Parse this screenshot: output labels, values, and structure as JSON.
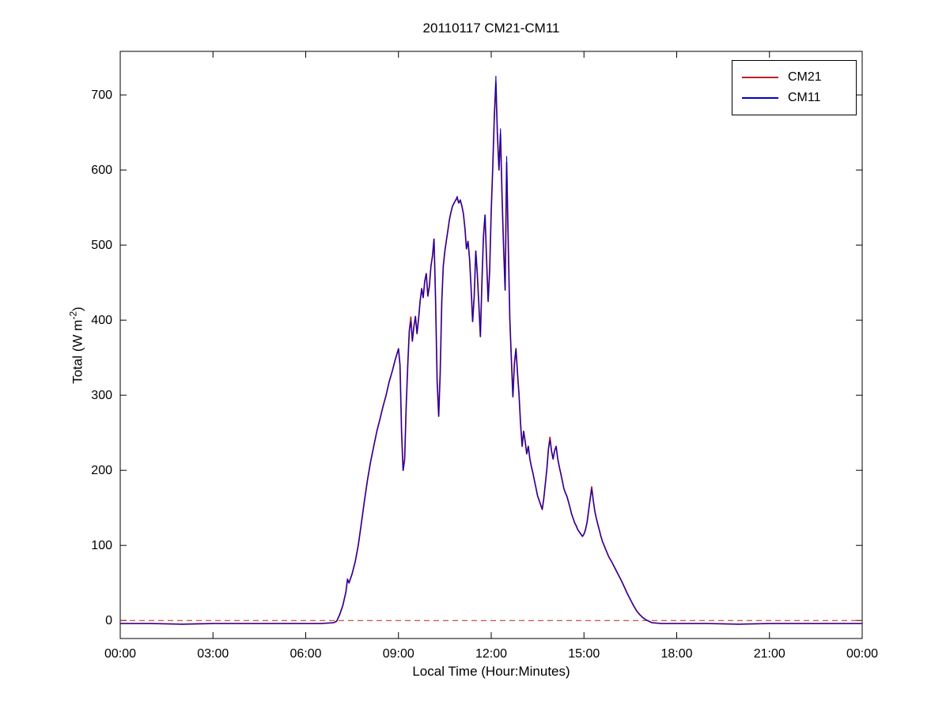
{
  "chart_data": {
    "type": "line",
    "title": "20110117 CM21-CM11",
    "xlabel": "Local Time (Hour:Minutes)",
    "ylabel": "Total (W m-2)",
    "ylabel_parts": {
      "pre": "Total (W m",
      "sup": "-2",
      "post": ")"
    },
    "x_unit": "hours",
    "xlim": [
      0,
      24
    ],
    "ylim": [
      -24,
      758
    ],
    "grid": false,
    "x_ticks": [
      0,
      3,
      6,
      9,
      12,
      15,
      18,
      21,
      24
    ],
    "x_tick_labels": [
      "00:00",
      "03:00",
      "06:00",
      "09:00",
      "12:00",
      "15:00",
      "18:00",
      "21:00",
      "00:00"
    ],
    "y_ticks": [
      0,
      100,
      200,
      300,
      400,
      500,
      600,
      700
    ],
    "y_tick_labels": [
      "0",
      "100",
      "200",
      "300",
      "400",
      "500",
      "600",
      "700"
    ],
    "zero_line": {
      "value": 0,
      "color": "#BB2222",
      "style": "dashed"
    },
    "legend": {
      "position": "top-right",
      "entries": [
        {
          "label": "CM21",
          "color": "#BB2222"
        },
        {
          "label": "CM11",
          "color": "#0000CC"
        }
      ]
    },
    "x": [
      0,
      1,
      2,
      3,
      4,
      5,
      6,
      6.5,
      6.9,
      7.0,
      7.1,
      7.2,
      7.3,
      7.35,
      7.4,
      7.5,
      7.6,
      7.7,
      7.8,
      7.9,
      8.0,
      8.1,
      8.2,
      8.3,
      8.4,
      8.5,
      8.6,
      8.7,
      8.8,
      8.9,
      9.0,
      9.05,
      9.1,
      9.15,
      9.2,
      9.25,
      9.3,
      9.35,
      9.4,
      9.45,
      9.5,
      9.55,
      9.6,
      9.65,
      9.7,
      9.75,
      9.8,
      9.85,
      9.9,
      9.95,
      10.0,
      10.05,
      10.1,
      10.15,
      10.2,
      10.25,
      10.3,
      10.35,
      10.4,
      10.45,
      10.5,
      10.55,
      10.6,
      10.65,
      10.7,
      10.75,
      10.8,
      10.85,
      10.9,
      10.95,
      11.0,
      11.05,
      11.1,
      11.15,
      11.2,
      11.25,
      11.3,
      11.35,
      11.4,
      11.45,
      11.5,
      11.55,
      11.6,
      11.65,
      11.7,
      11.75,
      11.8,
      11.85,
      11.9,
      11.95,
      12.0,
      12.05,
      12.1,
      12.15,
      12.2,
      12.25,
      12.3,
      12.35,
      12.4,
      12.45,
      12.5,
      12.55,
      12.6,
      12.65,
      12.7,
      12.75,
      12.8,
      12.85,
      12.9,
      12.95,
      13.0,
      13.05,
      13.1,
      13.15,
      13.2,
      13.25,
      13.3,
      13.35,
      13.4,
      13.45,
      13.5,
      13.55,
      13.6,
      13.65,
      13.7,
      13.75,
      13.8,
      13.85,
      13.9,
      13.95,
      14.0,
      14.05,
      14.1,
      14.15,
      14.2,
      14.25,
      14.3,
      14.35,
      14.4,
      14.45,
      14.5,
      14.55,
      14.6,
      14.65,
      14.7,
      14.75,
      14.8,
      14.85,
      14.9,
      14.95,
      15.0,
      15.05,
      15.1,
      15.15,
      15.2,
      15.25,
      15.3,
      15.35,
      15.4,
      15.45,
      15.5,
      15.55,
      15.6,
      15.65,
      15.7,
      15.75,
      15.8,
      15.9,
      16.0,
      16.1,
      16.2,
      16.3,
      16.4,
      16.5,
      16.6,
      16.7,
      16.8,
      16.9,
      17.0,
      17.1,
      17.2,
      17.5,
      18,
      19,
      20,
      21,
      22,
      23,
      24
    ],
    "series": [
      {
        "name": "CM21",
        "color": "#BB2222",
        "values": [
          -4,
          -4,
          -5,
          -4,
          -4,
          -4,
          -4,
          -4,
          -3,
          -1,
          8,
          20,
          38,
          55,
          50,
          62,
          78,
          100,
          130,
          160,
          188,
          212,
          232,
          252,
          268,
          285,
          300,
          318,
          332,
          348,
          362,
          340,
          250,
          200,
          215,
          285,
          340,
          385,
          404,
          372,
          392,
          405,
          382,
          402,
          425,
          442,
          430,
          452,
          462,
          432,
          445,
          472,
          485,
          508,
          430,
          320,
          272,
          330,
          425,
          472,
          492,
          506,
          520,
          534,
          544,
          552,
          556,
          560,
          562,
          556,
          560,
          552,
          542,
          522,
          495,
          505,
          482,
          442,
          398,
          432,
          492,
          462,
          420,
          378,
          452,
          512,
          540,
          482,
          425,
          465,
          545,
          605,
          672,
          716,
          648,
          600,
          648,
          565,
          498,
          440,
          610,
          505,
          402,
          350,
          298,
          342,
          362,
          330,
          300,
          262,
          232,
          252,
          238,
          222,
          232,
          215,
          205,
          196,
          186,
          176,
          166,
          160,
          154,
          148,
          162,
          182,
          202,
          228,
          244,
          226,
          215,
          226,
          232,
          216,
          205,
          196,
          186,
          176,
          170,
          165,
          158,
          150,
          142,
          136,
          130,
          126,
          121,
          118,
          115,
          112,
          115,
          121,
          131,
          146,
          162,
          178,
          160,
          146,
          136,
          128,
          120,
          112,
          105,
          100,
          95,
          90,
          85,
          78,
          70,
          62,
          54,
          45,
          36,
          28,
          20,
          13,
          8,
          4,
          1,
          -1,
          -3,
          -4,
          -4,
          -4,
          -5,
          -4,
          -4,
          -4,
          -4
        ]
      },
      {
        "name": "CM11",
        "color": "#0000CC",
        "values": [
          -4,
          -4,
          -5,
          -4,
          -4,
          -4,
          -4,
          -4,
          -3,
          -1,
          8,
          20,
          38,
          55,
          50,
          62,
          78,
          100,
          130,
          160,
          188,
          212,
          232,
          252,
          268,
          285,
          300,
          318,
          332,
          348,
          362,
          340,
          250,
          200,
          215,
          285,
          340,
          385,
          398,
          372,
          392,
          405,
          382,
          402,
          425,
          442,
          430,
          452,
          462,
          432,
          445,
          472,
          485,
          508,
          430,
          320,
          272,
          330,
          425,
          472,
          492,
          506,
          520,
          534,
          544,
          552,
          556,
          560,
          565,
          556,
          560,
          552,
          542,
          522,
          495,
          505,
          482,
          442,
          398,
          432,
          492,
          462,
          420,
          378,
          452,
          512,
          540,
          482,
          425,
          465,
          545,
          605,
          665,
          725,
          648,
          600,
          655,
          565,
          498,
          440,
          618,
          505,
          402,
          350,
          298,
          342,
          362,
          330,
          300,
          262,
          232,
          252,
          238,
          222,
          232,
          215,
          205,
          196,
          186,
          176,
          166,
          160,
          154,
          148,
          162,
          182,
          202,
          228,
          240,
          226,
          215,
          226,
          232,
          216,
          205,
          196,
          186,
          176,
          170,
          165,
          158,
          150,
          142,
          136,
          130,
          126,
          121,
          118,
          115,
          112,
          115,
          121,
          131,
          146,
          162,
          175,
          160,
          146,
          136,
          128,
          120,
          112,
          105,
          100,
          95,
          90,
          85,
          78,
          70,
          62,
          54,
          45,
          36,
          28,
          20,
          13,
          8,
          4,
          1,
          -1,
          -3,
          -4,
          -4,
          -4,
          -5,
          -4,
          -4,
          -4,
          -4
        ]
      }
    ]
  }
}
